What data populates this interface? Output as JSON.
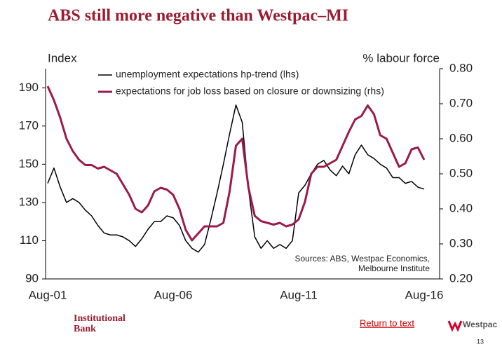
{
  "chart_data": {
    "type": "line",
    "title": "ABS still more negative than Westpac–MI",
    "y_label": "Index",
    "y2_label": "% labour force",
    "annotation": [
      "Sources: ABS, Westpac Economics,",
      "Melbourne Institute"
    ],
    "categories": [
      "Aug-01",
      null,
      null,
      null,
      null,
      null,
      null,
      null,
      null,
      null,
      null,
      null,
      null,
      null,
      null,
      null,
      null,
      null,
      null,
      null,
      "Aug-06",
      null,
      null,
      null,
      null,
      null,
      null,
      null,
      null,
      null,
      null,
      null,
      null,
      null,
      null,
      null,
      null,
      null,
      null,
      null,
      "Aug-11",
      null,
      null,
      null,
      null,
      null,
      null,
      null,
      null,
      null,
      null,
      null,
      null,
      null,
      null,
      null,
      null,
      null,
      null,
      null,
      "Aug-16"
    ],
    "ylim": [
      90,
      200
    ],
    "yticks": [
      90,
      110,
      130,
      150,
      170,
      190
    ],
    "y2lim": [
      0.2,
      0.8
    ],
    "y2ticks": [
      {
        "value": 0.2,
        "label": "0.20"
      },
      {
        "value": 0.3,
        "label": "0.30"
      },
      {
        "value": 0.4,
        "label": "0.40"
      },
      {
        "value": 0.5,
        "label": "0.50"
      },
      {
        "value": 0.6,
        "label": "0.60"
      },
      {
        "value": 0.7,
        "label": "0.70"
      },
      {
        "value": 0.8,
        "label": "0.80"
      }
    ],
    "grid": false,
    "series": [
      {
        "name": "unemployment expectations hp-trend (lhs)",
        "color": "#000000",
        "values": [
          140,
          148,
          138,
          130,
          132,
          130,
          126,
          123,
          118,
          114,
          113,
          113,
          112,
          110,
          107,
          111,
          116,
          120,
          120,
          123,
          122,
          118,
          110,
          106,
          104,
          108,
          121,
          135,
          150,
          166,
          181,
          172,
          137,
          112,
          106,
          110,
          106,
          108,
          106,
          110,
          135,
          139,
          145,
          150,
          152,
          147,
          144,
          149,
          145,
          155,
          160,
          155,
          153,
          150,
          148,
          143,
          143,
          140,
          141,
          138,
          137
        ]
      },
      {
        "name": "expectations for job loss based on closure or downsizing (rhs)",
        "color": "#9b1b45",
        "axis": "y2",
        "values": [
          0.75,
          0.71,
          0.66,
          0.6,
          0.565,
          0.54,
          0.525,
          0.525,
          0.515,
          0.52,
          0.51,
          0.5,
          0.47,
          0.44,
          0.4,
          0.39,
          0.41,
          0.45,
          0.46,
          0.455,
          0.44,
          0.4,
          0.34,
          0.31,
          0.33,
          0.35,
          0.35,
          0.35,
          0.36,
          0.45,
          0.58,
          0.6,
          0.46,
          0.38,
          0.365,
          0.36,
          0.355,
          0.36,
          0.35,
          0.355,
          0.37,
          0.42,
          0.5,
          0.52,
          0.52,
          0.53,
          0.54,
          0.58,
          0.62,
          0.655,
          0.665,
          0.695,
          0.67,
          0.61,
          0.6,
          0.56,
          0.52,
          0.53,
          0.57,
          0.575,
          0.54
        ]
      }
    ]
  },
  "footer": {
    "brand": [
      "Institutional",
      "Bank"
    ],
    "link": "Return to text",
    "logo": "Westpac",
    "page": "13"
  }
}
